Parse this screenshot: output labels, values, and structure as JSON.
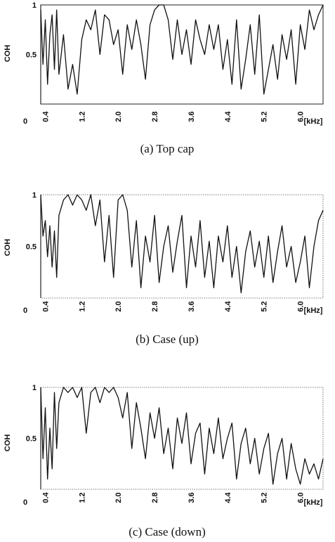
{
  "chart_data": [
    {
      "type": "line",
      "caption": "(a)  Top cap",
      "ylabel": "COH",
      "xunit": "[kHz]",
      "x_origin_label": "0",
      "ytick_labels": [
        "1",
        "0.5"
      ],
      "xtick_labels": [
        "0.4",
        "1.2",
        "2.0",
        "2.8",
        "3.6",
        "4.4",
        "5.2",
        "6.0"
      ],
      "xticks": [
        0.4,
        1.2,
        2.0,
        2.8,
        3.6,
        4.4,
        5.2,
        6.0
      ],
      "xlim": [
        0.3,
        6.5
      ],
      "ylim": [
        0,
        1
      ],
      "series": [
        {
          "x": [
            0.3,
            0.35,
            0.4,
            0.45,
            0.5,
            0.55,
            0.6,
            0.65,
            0.7,
            0.8,
            0.9,
            1.0,
            1.1,
            1.2,
            1.3,
            1.4,
            1.5,
            1.6,
            1.7,
            1.8,
            1.9,
            2.0,
            2.1,
            2.2,
            2.3,
            2.4,
            2.5,
            2.6,
            2.7,
            2.8,
            2.9,
            3.0,
            3.1,
            3.2,
            3.3,
            3.4,
            3.5,
            3.6,
            3.7,
            3.8,
            3.9,
            4.0,
            4.1,
            4.2,
            4.3,
            4.4,
            4.5,
            4.6,
            4.7,
            4.8,
            4.9,
            5.0,
            5.1,
            5.2,
            5.3,
            5.4,
            5.5,
            5.6,
            5.7,
            5.8,
            5.9,
            6.0,
            6.1,
            6.2,
            6.3,
            6.4,
            6.5
          ],
          "y": [
            0.95,
            0.4,
            0.85,
            0.2,
            0.7,
            0.9,
            0.35,
            0.95,
            0.3,
            0.7,
            0.15,
            0.4,
            0.1,
            0.65,
            0.85,
            0.75,
            0.95,
            0.5,
            0.9,
            0.85,
            0.6,
            0.75,
            0.3,
            0.8,
            0.55,
            0.85,
            0.6,
            0.25,
            0.8,
            0.95,
            1.0,
            1.0,
            0.85,
            0.45,
            0.85,
            0.5,
            0.75,
            0.4,
            0.85,
            0.65,
            0.5,
            0.8,
            0.55,
            0.8,
            0.35,
            0.65,
            0.2,
            0.85,
            0.15,
            0.45,
            0.8,
            0.3,
            0.9,
            0.1,
            0.35,
            0.6,
            0.25,
            0.7,
            0.45,
            0.75,
            0.2,
            0.8,
            0.55,
            0.95,
            0.75,
            0.9,
            1.0
          ]
        }
      ]
    },
    {
      "type": "line",
      "caption": "(b)  Case (up)",
      "ylabel": "COH",
      "xunit": "[kHz]",
      "x_origin_label": "0",
      "ytick_labels": [
        "1",
        "0.5"
      ],
      "xtick_labels": [
        "0.4",
        "1.2",
        "2.0",
        "2.8",
        "3.6",
        "4.4",
        "5.2",
        "6.0"
      ],
      "xticks": [
        0.4,
        1.2,
        2.0,
        2.8,
        3.6,
        4.4,
        5.2,
        6.0
      ],
      "xlim": [
        0.3,
        6.5
      ],
      "ylim": [
        0,
        1
      ],
      "series": [
        {
          "x": [
            0.3,
            0.35,
            0.4,
            0.45,
            0.5,
            0.55,
            0.6,
            0.65,
            0.7,
            0.8,
            0.9,
            1.0,
            1.1,
            1.2,
            1.3,
            1.4,
            1.5,
            1.6,
            1.7,
            1.8,
            1.9,
            2.0,
            2.1,
            2.2,
            2.3,
            2.4,
            2.5,
            2.6,
            2.7,
            2.8,
            2.9,
            3.0,
            3.1,
            3.2,
            3.3,
            3.4,
            3.5,
            3.6,
            3.7,
            3.8,
            3.9,
            4.0,
            4.1,
            4.2,
            4.3,
            4.4,
            4.5,
            4.6,
            4.7,
            4.8,
            4.9,
            5.0,
            5.1,
            5.2,
            5.3,
            5.4,
            5.5,
            5.6,
            5.7,
            5.8,
            5.9,
            6.0,
            6.1,
            6.2,
            6.3,
            6.4,
            6.5
          ],
          "y": [
            1.0,
            0.6,
            0.75,
            0.4,
            0.7,
            0.3,
            0.65,
            0.2,
            0.8,
            0.95,
            1.0,
            0.9,
            1.0,
            0.95,
            0.85,
            1.0,
            0.7,
            0.95,
            0.35,
            0.8,
            0.2,
            0.95,
            1.0,
            0.85,
            0.3,
            0.75,
            0.1,
            0.6,
            0.35,
            0.8,
            0.15,
            0.5,
            0.7,
            0.25,
            0.55,
            0.8,
            0.1,
            0.6,
            0.3,
            0.75,
            0.2,
            0.55,
            0.1,
            0.6,
            0.35,
            0.7,
            0.2,
            0.5,
            0.05,
            0.45,
            0.65,
            0.3,
            0.55,
            0.2,
            0.6,
            0.15,
            0.45,
            0.7,
            0.3,
            0.5,
            0.15,
            0.35,
            0.6,
            0.1,
            0.5,
            0.75,
            0.85
          ]
        }
      ]
    },
    {
      "type": "line",
      "caption": "(c)  Case (down)",
      "ylabel": "COH",
      "xunit": "[kHz]",
      "x_origin_label": "0",
      "ytick_labels": [
        "1",
        "0.5"
      ],
      "xtick_labels": [
        "0.4",
        "1.2",
        "2.0",
        "2.8",
        "3.6",
        "4.4",
        "5.2",
        "6.0"
      ],
      "xticks": [
        0.4,
        1.2,
        2.0,
        2.8,
        3.6,
        4.4,
        5.2,
        6.0
      ],
      "xlim": [
        0.3,
        6.5
      ],
      "ylim": [
        0,
        1
      ],
      "series": [
        {
          "x": [
            0.3,
            0.35,
            0.4,
            0.45,
            0.5,
            0.55,
            0.6,
            0.65,
            0.7,
            0.8,
            0.9,
            1.0,
            1.1,
            1.2,
            1.3,
            1.4,
            1.5,
            1.6,
            1.7,
            1.8,
            1.9,
            2.0,
            2.1,
            2.2,
            2.3,
            2.4,
            2.5,
            2.6,
            2.7,
            2.8,
            2.9,
            3.0,
            3.1,
            3.2,
            3.3,
            3.4,
            3.5,
            3.6,
            3.7,
            3.8,
            3.9,
            4.0,
            4.1,
            4.2,
            4.3,
            4.4,
            4.5,
            4.6,
            4.7,
            4.8,
            4.9,
            5.0,
            5.1,
            5.2,
            5.3,
            5.4,
            5.5,
            5.6,
            5.7,
            5.8,
            5.9,
            6.0,
            6.1,
            6.2,
            6.3,
            6.4,
            6.5
          ],
          "y": [
            1.0,
            0.3,
            0.8,
            0.1,
            0.6,
            0.2,
            0.95,
            0.4,
            0.85,
            1.0,
            0.95,
            1.0,
            0.9,
            1.0,
            0.55,
            0.95,
            1.0,
            0.85,
            1.0,
            0.95,
            1.0,
            0.9,
            0.7,
            0.95,
            0.4,
            0.85,
            0.6,
            0.3,
            0.75,
            0.5,
            0.8,
            0.35,
            0.6,
            0.2,
            0.7,
            0.45,
            0.75,
            0.25,
            0.55,
            0.65,
            0.15,
            0.6,
            0.35,
            0.7,
            0.3,
            0.5,
            0.65,
            0.1,
            0.45,
            0.6,
            0.25,
            0.5,
            0.15,
            0.4,
            0.55,
            0.05,
            0.35,
            0.5,
            0.1,
            0.45,
            0.2,
            0.05,
            0.3,
            0.15,
            0.25,
            0.1,
            0.3
          ]
        }
      ]
    }
  ]
}
